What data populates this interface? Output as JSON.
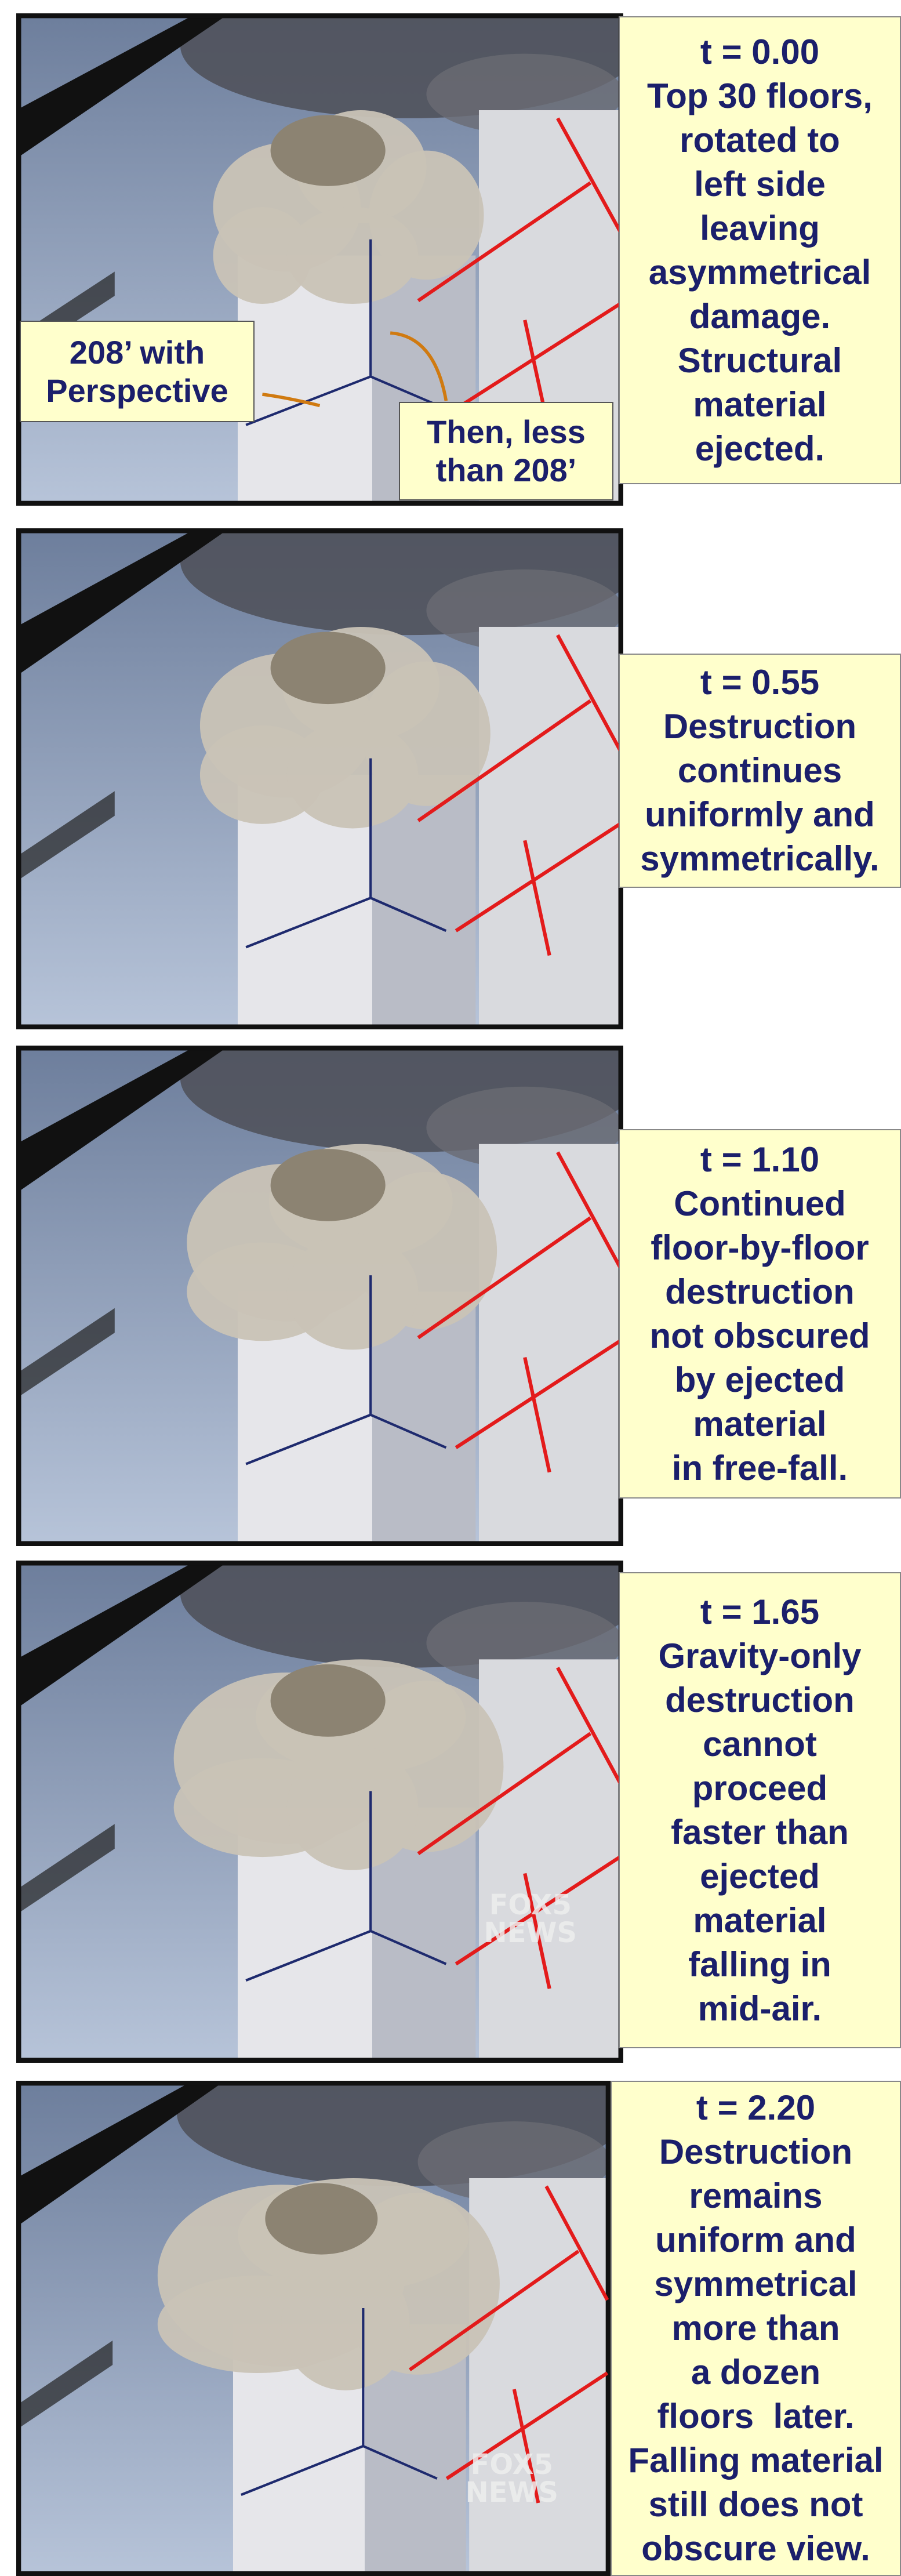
{
  "panels": [
    {
      "time": "t = 0.00",
      "lines": [
        "Top 30 floors,",
        "rotated to",
        "left side",
        "leaving",
        "asymmetrical",
        "damage.",
        "Structural",
        "material",
        "ejected."
      ]
    },
    {
      "time": "t = 0.55",
      "lines": [
        "Destruction",
        "continues",
        "uniformly and",
        "symmetrically."
      ]
    },
    {
      "time": "t = 1.10",
      "lines": [
        "Continued",
        "floor-by-floor",
        "destruction",
        "not obscured",
        "by ejected",
        "material",
        "in free-fall."
      ]
    },
    {
      "time": "t = 1.65",
      "lines": [
        "Gravity-only",
        "destruction",
        "cannot",
        "proceed",
        "faster than",
        "ejected",
        "material",
        "falling in",
        "mid-air."
      ]
    },
    {
      "time": "t = 2.20",
      "lines": [
        "Destruction",
        "remains",
        "uniform and",
        "symmetrical",
        "more than",
        "a dozen",
        "floors  later.",
        "Falling material",
        "still does not",
        "obscure view."
      ]
    }
  ],
  "annotations": {
    "perspective": [
      "208’ with",
      "Perspective"
    ],
    "less": [
      "Then, less",
      "than 208’"
    ]
  },
  "watermark": [
    "FOX5",
    "NEWS"
  ]
}
